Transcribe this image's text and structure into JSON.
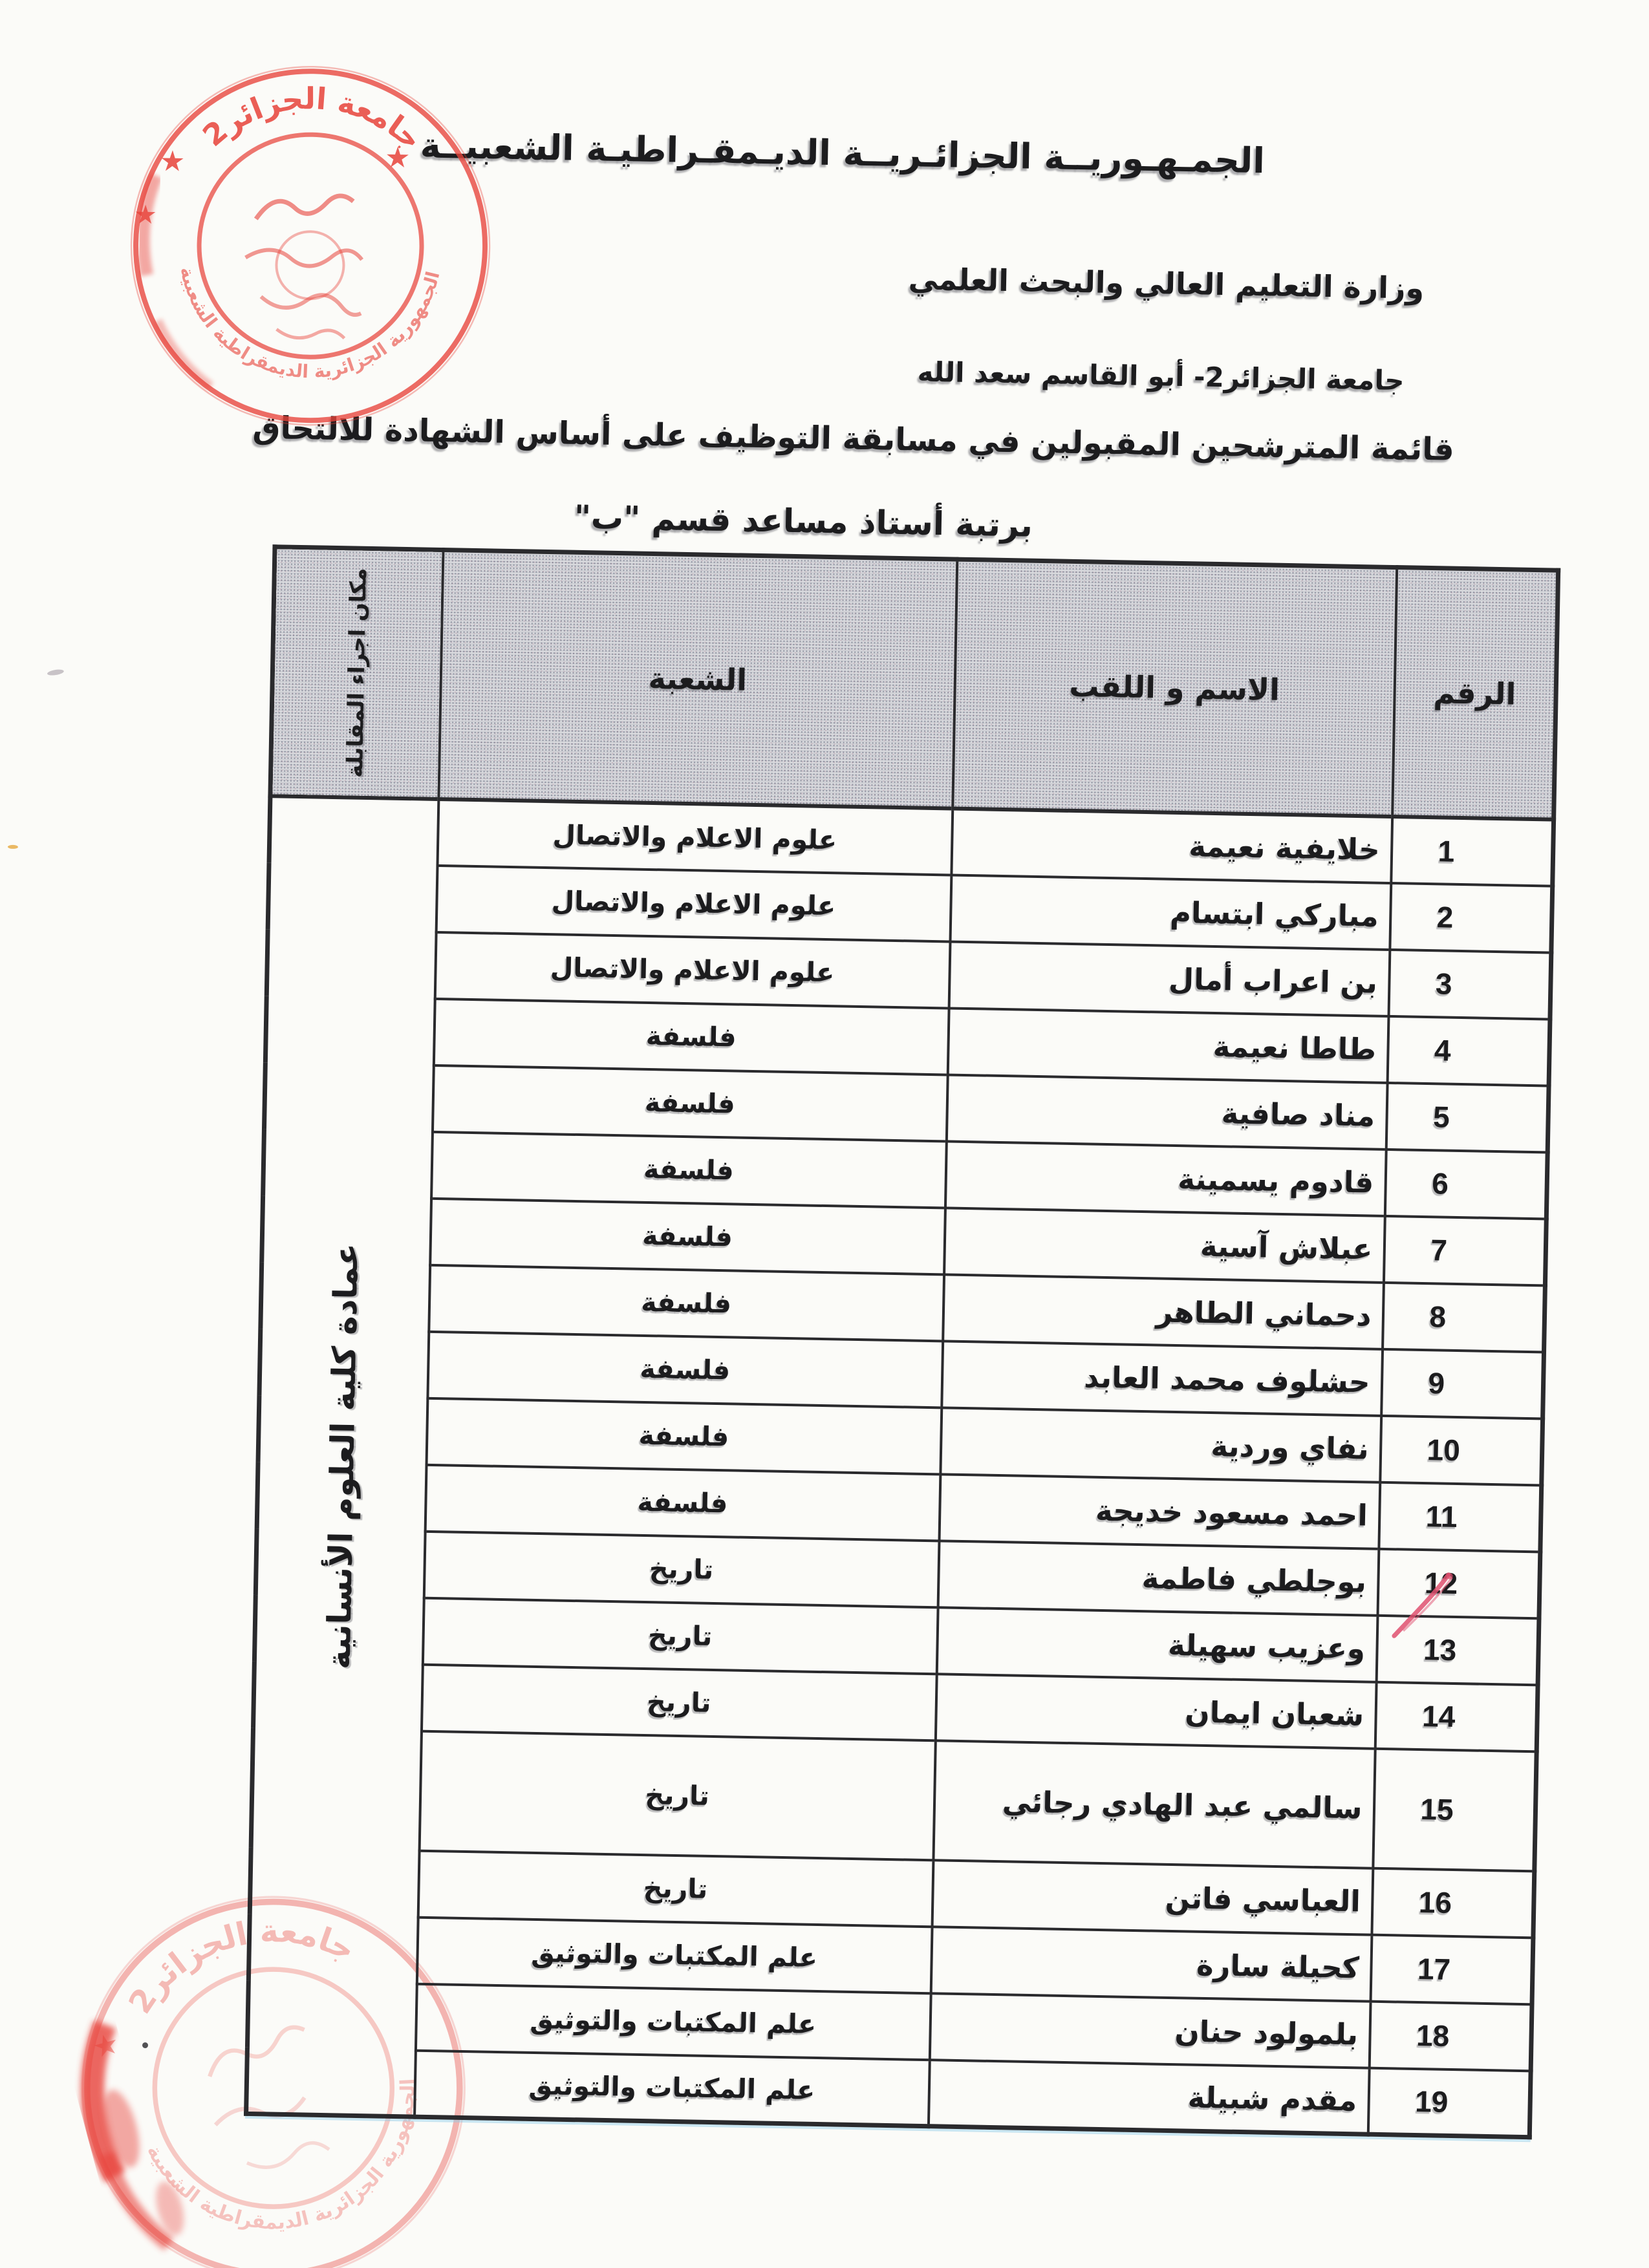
{
  "doc": {
    "country": "الجمـهـوريــة الجزائـريــة الديـمقـراطيـة الشعبيــة",
    "ministry": "وزارة التعليم العالي والبحث العلمي",
    "university": "جامعة الجزائر2- أبو القاسم سعد الله",
    "list_title_line1": "قائمة المترشحين المقبولين في مسابقة التوظيف على أساس الشهادة للالتحاق",
    "list_title_line2": "برتبة أستاذ مساعد قسم \"ب\""
  },
  "table": {
    "headers": {
      "number": "الرقم",
      "name": "الاسم و اللقب",
      "branch": "الشعبة",
      "interview_place": "مكان اجراء المقابلة"
    },
    "interview_place_value": "عمادة كلية العلوم الأنسانية",
    "rows": [
      {
        "number": "1",
        "name": "خلايفية نعيمة",
        "branch": "علوم الاعلام والاتصال"
      },
      {
        "number": "2",
        "name": "مباركي ابتسام",
        "branch": "علوم الاعلام والاتصال"
      },
      {
        "number": "3",
        "name": "بن اعراب أمال",
        "branch": "علوم الاعلام والاتصال"
      },
      {
        "number": "4",
        "name": "طاطا نعيمة",
        "branch": "فلسفة"
      },
      {
        "number": "5",
        "name": "مناد صافية",
        "branch": "فلسفة"
      },
      {
        "number": "6",
        "name": "قادوم يسمينة",
        "branch": "فلسفة"
      },
      {
        "number": "7",
        "name": "عبلاش آسية",
        "branch": "فلسفة"
      },
      {
        "number": "8",
        "name": "دحماني الطاهر",
        "branch": "فلسفة"
      },
      {
        "number": "9",
        "name": "حشلوف محمد العابد",
        "branch": "فلسفة"
      },
      {
        "number": "10",
        "name": "نفاي وردية",
        "branch": "فلسفة"
      },
      {
        "number": "11",
        "name": "احمد مسعود خديجة",
        "branch": "فلسفة"
      },
      {
        "number": "12",
        "name": "بوجلطي فاطمة",
        "branch": "تاريخ"
      },
      {
        "number": "13",
        "name": "وعزيب سهيلة",
        "branch": "تاريخ"
      },
      {
        "number": "14",
        "name": "شعبان ايمان",
        "branch": "تاريخ"
      },
      {
        "number": "15",
        "name": "سالمي عبد الهادي رجائي",
        "branch": "تاريخ"
      },
      {
        "number": "16",
        "name": "العباسي فاتن",
        "branch": "تاريخ"
      },
      {
        "number": "17",
        "name": "كحيلة سارة",
        "branch": "علم المكتبات والتوثيق"
      },
      {
        "number": "18",
        "name": "بلمولود حنان",
        "branch": "علم المكتبات والتوثيق"
      },
      {
        "number": "19",
        "name": "مقدم شبيلة",
        "branch": "علم المكتبات والتوثيق"
      }
    ]
  },
  "stamps": {
    "top": {
      "arc_text": "جامعة الجزائر2",
      "ring_text": "الجمهورية الجزائرية الديمقراطية الشعبية"
    },
    "bottom": {
      "arc_text": "جامعة الجزائر2",
      "ring_text": "الجمهورية الجزائرية الديمقراطية الشعبية"
    }
  },
  "colors": {
    "stamp_red": "#e8433a",
    "pen_mark": "#df5070",
    "header_gray": "#cfd0d5",
    "border": "#2a2a2d",
    "ink": "#1c1c1e"
  }
}
